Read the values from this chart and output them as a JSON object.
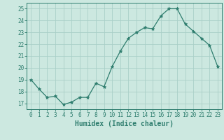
{
  "x": [
    0,
    1,
    2,
    3,
    4,
    5,
    6,
    7,
    8,
    9,
    10,
    11,
    12,
    13,
    14,
    15,
    16,
    17,
    18,
    19,
    20,
    21,
    22,
    23
  ],
  "y": [
    19.0,
    18.2,
    17.5,
    17.6,
    16.9,
    17.1,
    17.5,
    17.5,
    18.7,
    18.4,
    20.1,
    21.4,
    22.5,
    23.0,
    23.4,
    23.3,
    24.4,
    25.0,
    25.0,
    23.7,
    23.1,
    22.5,
    21.9,
    20.1
  ],
  "line_color": "#2e7d6e",
  "marker": "*",
  "marker_size": 3.5,
  "bg_color": "#cce8e0",
  "grid_color": "#aacfc8",
  "xlabel": "Humidex (Indice chaleur)",
  "xlim": [
    -0.5,
    23.5
  ],
  "ylim": [
    16.5,
    25.5
  ],
  "yticks": [
    17,
    18,
    19,
    20,
    21,
    22,
    23,
    24,
    25
  ],
  "xticks": [
    0,
    1,
    2,
    3,
    4,
    5,
    6,
    7,
    8,
    9,
    10,
    11,
    12,
    13,
    14,
    15,
    16,
    17,
    18,
    19,
    20,
    21,
    22,
    23
  ],
  "tick_color": "#2e7d6e",
  "label_color": "#2e7d6e",
  "spine_color": "#2e7d6e",
  "tick_fontsize": 5.5,
  "xlabel_fontsize": 7.0,
  "linewidth": 0.9
}
